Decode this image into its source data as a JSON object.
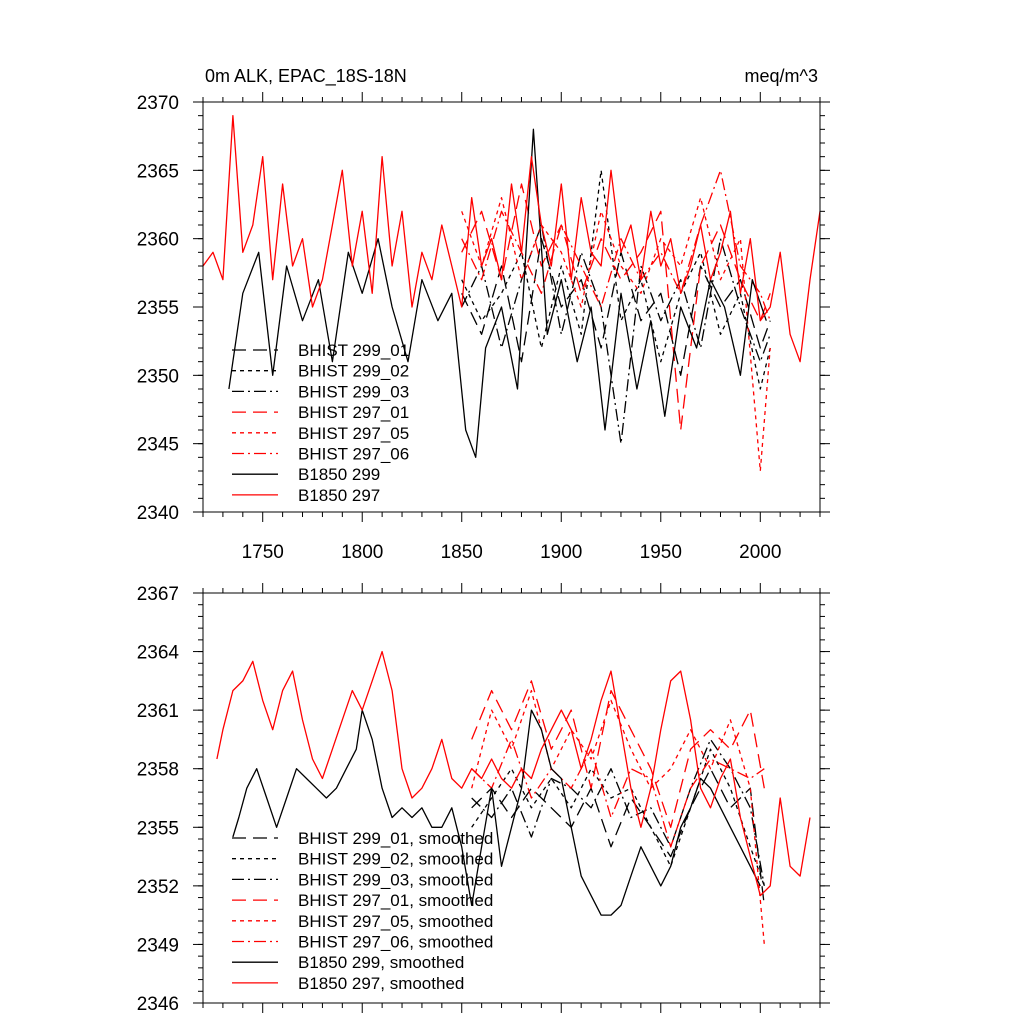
{
  "chart_data": [
    {
      "type": "line",
      "title_left": "0m ALK, EPAC_18S-18N",
      "title_right": "meq/m^3",
      "xlim": [
        1720,
        2030
      ],
      "ylim": [
        2340,
        2370
      ],
      "xticks": [
        1750,
        1800,
        1850,
        1900,
        1950,
        2000
      ],
      "yticks": [
        2340,
        2345,
        2350,
        2355,
        2360,
        2365,
        2370
      ],
      "grid": false,
      "legend_placement": "lower-left",
      "series": [
        {
          "name": "BHIST 299_01",
          "color": "#000000",
          "dash": "long-dash",
          "x": [
            1850,
            1860,
            1870,
            1880,
            1890,
            1900,
            1910,
            1920,
            1930,
            1940,
            1950,
            1960,
            1970,
            1980,
            1990,
            2000,
            2005
          ],
          "y": [
            2356,
            2353,
            2358,
            2351,
            2360,
            2355,
            2357,
            2352,
            2359,
            2354,
            2356,
            2350,
            2358,
            2355,
            2357,
            2352,
            2354
          ]
        },
        {
          "name": "BHIST 299_02",
          "color": "#000000",
          "dash": "short-dash",
          "x": [
            1850,
            1860,
            1870,
            1880,
            1890,
            1900,
            1910,
            1920,
            1930,
            1940,
            1950,
            1960,
            1970,
            1980,
            1990,
            2000,
            2005
          ],
          "y": [
            2357,
            2354,
            2356,
            2359,
            2352,
            2358,
            2353,
            2365,
            2354,
            2357,
            2351,
            2356,
            2359,
            2353,
            2356,
            2349,
            2352
          ]
        },
        {
          "name": "BHIST 299_03",
          "color": "#000000",
          "dash": "dash-dot",
          "x": [
            1850,
            1860,
            1870,
            1880,
            1890,
            1900,
            1910,
            1920,
            1930,
            1940,
            1950,
            1960,
            1970,
            1980,
            1990,
            2000,
            2005
          ],
          "y": [
            2355,
            2358,
            2352,
            2357,
            2361,
            2353,
            2359,
            2355,
            2345,
            2358,
            2354,
            2357,
            2352,
            2360,
            2355,
            2351,
            2353
          ]
        },
        {
          "name": "BHIST 297_01",
          "color": "#ff0000",
          "dash": "long-dash",
          "x": [
            1850,
            1860,
            1870,
            1880,
            1890,
            1900,
            1910,
            1920,
            1930,
            1940,
            1950,
            1960,
            1970,
            1980,
            1990,
            2000,
            2005
          ],
          "y": [
            2359,
            2362,
            2357,
            2364,
            2358,
            2361,
            2356,
            2360,
            2357,
            2359,
            2362,
            2346,
            2358,
            2361,
            2357,
            2354,
            2356
          ]
        },
        {
          "name": "BHIST 297_05",
          "color": "#ff0000",
          "dash": "short-dash",
          "x": [
            1850,
            1860,
            1870,
            1880,
            1890,
            1900,
            1910,
            1920,
            1930,
            1940,
            1950,
            1960,
            1970,
            1980,
            1990,
            2000,
            2005
          ],
          "y": [
            2362,
            2358,
            2363,
            2357,
            2361,
            2359,
            2355,
            2362,
            2358,
            2356,
            2360,
            2358,
            2363,
            2357,
            2360,
            2343,
            2352
          ]
        },
        {
          "name": "BHIST 297_06",
          "color": "#ff0000",
          "dash": "dash-dot",
          "x": [
            1850,
            1860,
            1870,
            1880,
            1890,
            1900,
            1910,
            1920,
            1930,
            1940,
            1950,
            1960,
            1970,
            1980,
            1990,
            2000,
            2005
          ],
          "y": [
            2360,
            2357,
            2362,
            2359,
            2356,
            2361,
            2358,
            2355,
            2360,
            2357,
            2359,
            2356,
            2361,
            2365,
            2358,
            2356,
            2354
          ]
        },
        {
          "name": "B1850 299",
          "color": "#000000",
          "dash": "solid",
          "x": [
            1733,
            1740,
            1748,
            1755,
            1762,
            1770,
            1778,
            1785,
            1793,
            1800,
            1808,
            1815,
            1823,
            1830,
            1838,
            1845,
            1852,
            1857,
            1862,
            1870,
            1878,
            1886,
            1893,
            1900,
            1908,
            1915,
            1922,
            1930,
            1938,
            1945,
            1952,
            1960,
            1968,
            1975,
            1982,
            1990,
            1996,
            2003
          ],
          "y": [
            2349,
            2356,
            2359,
            2350,
            2358,
            2354,
            2357,
            2351,
            2359,
            2356,
            2360,
            2355,
            2351,
            2357,
            2354,
            2356,
            2346,
            2344,
            2352,
            2355,
            2349,
            2368,
            2353,
            2357,
            2351,
            2355,
            2346,
            2356,
            2349,
            2354,
            2347,
            2355,
            2352,
            2357,
            2355,
            2350,
            2357,
            2354
          ]
        },
        {
          "name": "B1850 297",
          "color": "#ff0000",
          "dash": "solid",
          "x": [
            1720,
            1725,
            1730,
            1735,
            1740,
            1745,
            1750,
            1755,
            1760,
            1765,
            1770,
            1775,
            1780,
            1785,
            1790,
            1795,
            1800,
            1805,
            1810,
            1815,
            1820,
            1825,
            1830,
            1835,
            1840,
            1845,
            1850,
            1855,
            1860,
            1865,
            1870,
            1875,
            1880,
            1885,
            1890,
            1895,
            1900,
            1905,
            1910,
            1915,
            1920,
            1925,
            1930,
            1935,
            1940,
            1945,
            1950,
            1955,
            1960,
            1965,
            1970,
            1975,
            1980,
            1985,
            1990,
            1995,
            2000,
            2005,
            2010,
            2015,
            2020,
            2025,
            2030
          ],
          "y": [
            2358,
            2359,
            2357,
            2369,
            2359,
            2361,
            2366,
            2357,
            2364,
            2358,
            2360,
            2355,
            2357,
            2361,
            2365,
            2358,
            2362,
            2356,
            2366,
            2358,
            2362,
            2355,
            2359,
            2357,
            2361,
            2358,
            2355,
            2363,
            2358,
            2360,
            2357,
            2364,
            2359,
            2366,
            2361,
            2358,
            2364,
            2357,
            2363,
            2359,
            2358,
            2365,
            2359,
            2361,
            2357,
            2362,
            2358,
            2360,
            2356,
            2358,
            2361,
            2357,
            2359,
            2362,
            2356,
            2360,
            2354,
            2355,
            2359,
            2353,
            2351,
            2357,
            2362
          ]
        }
      ]
    },
    {
      "type": "line",
      "xlim": [
        1720,
        2030
      ],
      "ylim": [
        2346,
        2367
      ],
      "xticks": [
        1750,
        1800,
        1850,
        1900,
        1950,
        2000
      ],
      "yticks": [
        2346,
        2349,
        2352,
        2355,
        2358,
        2361,
        2364,
        2367
      ],
      "grid": false,
      "legend_placement": "lower-left",
      "series": [
        {
          "name": "BHIST 299_01, smoothed",
          "color": "#000000",
          "dash": "long-dash",
          "x": [
            1855,
            1865,
            1875,
            1885,
            1895,
            1905,
            1915,
            1925,
            1935,
            1945,
            1955,
            1965,
            1975,
            1985,
            1995,
            2002
          ],
          "y": [
            2356,
            2357,
            2355.5,
            2357,
            2356,
            2355,
            2357,
            2354,
            2356.5,
            2355,
            2353.5,
            2356,
            2358,
            2356,
            2357,
            2351
          ]
        },
        {
          "name": "BHIST 299_02, smoothed",
          "color": "#000000",
          "dash": "short-dash",
          "x": [
            1855,
            1865,
            1875,
            1885,
            1895,
            1905,
            1915,
            1925,
            1935,
            1945,
            1955,
            1965,
            1975,
            1985,
            1995,
            2002
          ],
          "y": [
            2355,
            2356.5,
            2358,
            2356,
            2357.5,
            2356,
            2358,
            2356.5,
            2357,
            2355,
            2353,
            2356,
            2359,
            2357,
            2354,
            2352
          ]
        },
        {
          "name": "BHIST 299_03, smoothed",
          "color": "#000000",
          "dash": "dash-dot",
          "x": [
            1855,
            1865,
            1875,
            1885,
            1895,
            1905,
            1915,
            1925,
            1935,
            1945,
            1955,
            1965,
            1975,
            1985,
            1995,
            2002
          ],
          "y": [
            2356.5,
            2355.5,
            2357,
            2354.5,
            2357.5,
            2357,
            2356,
            2358,
            2355.5,
            2356,
            2354,
            2357,
            2359.5,
            2358,
            2356,
            2352
          ]
        },
        {
          "name": "BHIST 297_01, smoothed",
          "color": "#ff0000",
          "dash": "long-dash",
          "x": [
            1855,
            1865,
            1875,
            1885,
            1895,
            1905,
            1915,
            1925,
            1935,
            1945,
            1955,
            1965,
            1975,
            1985,
            1995,
            2002
          ],
          "y": [
            2359.5,
            2362,
            2360,
            2362.5,
            2359,
            2361,
            2357,
            2362,
            2360,
            2358,
            2355,
            2359,
            2360,
            2359,
            2361,
            2357
          ]
        },
        {
          "name": "BHIST 297_05, smoothed",
          "color": "#ff0000",
          "dash": "short-dash",
          "x": [
            1855,
            1865,
            1875,
            1885,
            1895,
            1905,
            1915,
            1925,
            1935,
            1945,
            1955,
            1965,
            1975,
            1985,
            1995,
            2002
          ],
          "y": [
            2357,
            2361,
            2359,
            2362,
            2358,
            2360,
            2358.5,
            2361.5,
            2359,
            2357,
            2358,
            2360,
            2358,
            2360.5,
            2357,
            2349
          ]
        },
        {
          "name": "BHIST 297_06, smoothed",
          "color": "#ff0000",
          "dash": "dash-dot",
          "x": [
            1855,
            1865,
            1875,
            1885,
            1895,
            1905,
            1915,
            1925,
            1935,
            1945,
            1955,
            1965,
            1975,
            1985,
            1995,
            2002
          ],
          "y": [
            2358,
            2357,
            2359.5,
            2356.5,
            2358,
            2357,
            2359,
            2355.5,
            2358,
            2357.5,
            2354,
            2357,
            2358.5,
            2358,
            2357.5,
            2358
          ]
        },
        {
          "name": "B1850 299, smoothed",
          "color": "#000000",
          "dash": "solid",
          "x": [
            1735,
            1738,
            1742,
            1747,
            1752,
            1757,
            1762,
            1767,
            1772,
            1777,
            1782,
            1787,
            1792,
            1797,
            1800,
            1805,
            1810,
            1815,
            1820,
            1825,
            1830,
            1835,
            1840,
            1845,
            1850,
            1855,
            1860,
            1865,
            1870,
            1875,
            1880,
            1885,
            1890,
            1895,
            1900,
            1905,
            1910,
            1915,
            1920,
            1925,
            1930,
            1935,
            1940,
            1945,
            1950,
            1955,
            1960,
            1965,
            1970,
            1975,
            1980,
            1985,
            1990,
            1995,
            2000
          ],
          "y": [
            2354.5,
            2355.5,
            2357,
            2358,
            2356.5,
            2355,
            2356.5,
            2358,
            2357.5,
            2357,
            2356.5,
            2357,
            2358,
            2359,
            2361,
            2359.5,
            2357,
            2355.5,
            2356,
            2355.5,
            2356,
            2355,
            2355,
            2356,
            2354,
            2351,
            2354,
            2357,
            2353,
            2355,
            2357,
            2361,
            2360,
            2358,
            2357.5,
            2355,
            2352.5,
            2351.5,
            2350.5,
            2350.5,
            2351,
            2352.5,
            2354,
            2353,
            2352,
            2353,
            2355,
            2356,
            2357.5,
            2357,
            2356,
            2355,
            2354,
            2353,
            2352
          ]
        },
        {
          "name": "B1850 297, smoothed",
          "color": "#ff0000",
          "dash": "solid",
          "x": [
            1727,
            1730,
            1735,
            1740,
            1745,
            1750,
            1755,
            1760,
            1765,
            1770,
            1775,
            1780,
            1785,
            1790,
            1795,
            1800,
            1805,
            1810,
            1815,
            1820,
            1825,
            1830,
            1835,
            1840,
            1845,
            1850,
            1855,
            1860,
            1865,
            1870,
            1875,
            1880,
            1885,
            1890,
            1895,
            1900,
            1905,
            1910,
            1915,
            1920,
            1925,
            1930,
            1935,
            1940,
            1945,
            1950,
            1955,
            1960,
            1965,
            1970,
            1975,
            1980,
            1985,
            1990,
            1995,
            2000,
            2005,
            2010,
            2015,
            2020,
            2025
          ],
          "y": [
            2358.5,
            2360,
            2362,
            2362.5,
            2363.5,
            2361.5,
            2360,
            2362,
            2363,
            2360.5,
            2358.5,
            2357.5,
            2359,
            2360.5,
            2362,
            2361,
            2362.5,
            2364,
            2362,
            2358,
            2356.5,
            2357,
            2358,
            2359.5,
            2357.5,
            2357,
            2358,
            2357.5,
            2358.5,
            2357.5,
            2357,
            2358,
            2357.5,
            2359,
            2360,
            2361,
            2360,
            2358,
            2359.5,
            2361.5,
            2363,
            2360,
            2357,
            2355,
            2357,
            2360,
            2362.5,
            2363,
            2360.5,
            2357,
            2356,
            2357.5,
            2358.5,
            2355.5,
            2353.5,
            2351.5,
            2352,
            2356.5,
            2353,
            2352.5,
            2355.5
          ]
        }
      ]
    }
  ]
}
